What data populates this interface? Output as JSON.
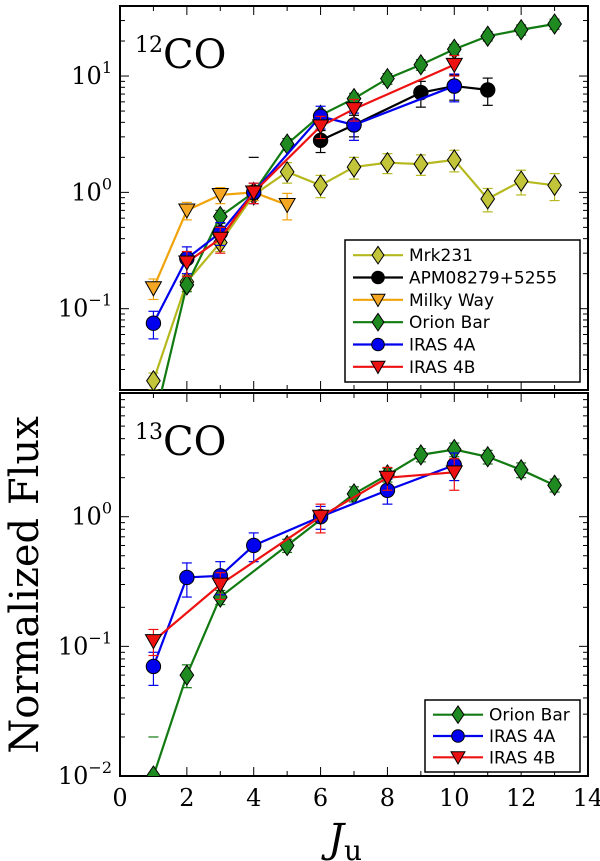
{
  "figure": {
    "ylabel": "Normalized Flux",
    "xlabel_main": "J",
    "xlabel_sub": "u"
  },
  "chart_data": [
    {
      "type": "line",
      "panel_label_sup": "12",
      "panel_label_main": "CO",
      "xlim": [
        0,
        14
      ],
      "ylim": [
        0.02,
        40
      ],
      "yscale": "log",
      "grid": false,
      "legend_position": "bottom-right",
      "x_ticks": [
        0,
        2,
        4,
        6,
        8,
        10,
        12,
        14
      ],
      "y_ticks": [
        {
          "value": 0.1,
          "base": "10",
          "exp": "−1"
        },
        {
          "value": 1,
          "base": "10",
          "exp": "0"
        },
        {
          "value": 10,
          "base": "10",
          "exp": "1"
        }
      ],
      "series": [
        {
          "name": "Mrk231",
          "color": "#b5b91e",
          "face": "#c2c43a",
          "marker": "diamond",
          "points": [
            [
              1,
              0.024
            ],
            [
              2,
              0.17
            ],
            [
              3,
              0.37
            ],
            [
              4,
              0.95
            ],
            [
              5,
              1.5
            ],
            [
              6,
              1.15
            ],
            [
              7,
              1.65
            ],
            [
              8,
              1.8
            ],
            [
              9,
              1.75
            ],
            [
              10,
              1.9
            ],
            [
              11,
              0.88
            ],
            [
              12,
              1.25
            ],
            [
              13,
              1.15
            ]
          ],
          "err": [
            0.004,
            0.025,
            0.06,
            0.1,
            0.3,
            0.25,
            0.35,
            0.35,
            0.35,
            0.4,
            0.2,
            0.3,
            0.3
          ]
        },
        {
          "name": "APM08279+5255",
          "color": "#000000",
          "face": "#000000",
          "marker": "circle",
          "points": [
            [
              6,
              2.8
            ],
            [
              7,
              3.8
            ],
            [
              9,
              7.2
            ],
            [
              10,
              8.2
            ],
            [
              11,
              7.6
            ]
          ],
          "err": [
            0.6,
            0.8,
            1.8,
            2.0,
            2.0
          ]
        },
        {
          "name": "Milky Way",
          "color": "#f0a30a",
          "face": "#f5a623",
          "marker": "triangle-down",
          "points": [
            [
              1,
              0.15
            ],
            [
              2,
              0.7
            ],
            [
              3,
              0.95
            ],
            [
              4,
              1.0
            ],
            [
              5,
              0.78
            ]
          ],
          "err": [
            0.03,
            0.12,
            0.15,
            0.15,
            0.2
          ]
        },
        {
          "name": "Orion Bar",
          "color": "#117a11",
          "face": "#1f8a1f",
          "marker": "diamond",
          "points": [
            [
              1,
              0.01
            ],
            [
              2,
              0.16
            ],
            [
              3,
              0.62
            ],
            [
              4,
              1.0
            ],
            [
              5,
              2.6
            ],
            [
              6,
              4.6
            ],
            [
              7,
              6.4
            ],
            [
              8,
              9.5
            ],
            [
              9,
              12.5
            ],
            [
              10,
              17
            ],
            [
              11,
              22
            ],
            [
              12,
              25
            ],
            [
              13,
              28
            ]
          ],
          "err": [
            0.002,
            0.02,
            0.08,
            0.1,
            0.3,
            0.5,
            0.7,
            1.0,
            1.3,
            1.7,
            2.0,
            2.5,
            2.8
          ]
        },
        {
          "name": "IRAS 4A",
          "color": "#0000ee",
          "face": "#0000ee",
          "marker": "circle",
          "points": [
            [
              1,
              0.075
            ],
            [
              2,
              0.27
            ],
            [
              3,
              0.45
            ],
            [
              4,
              1.0
            ],
            [
              6,
              4.5
            ],
            [
              7,
              3.8
            ],
            [
              10,
              8.2
            ]
          ],
          "err": [
            0.02,
            0.07,
            0.1,
            0.2,
            1.0,
            1.0,
            2.2
          ]
        },
        {
          "name": "IRAS 4B",
          "color": "#ee1111",
          "face": "#ee1111",
          "marker": "triangle-down",
          "points": [
            [
              2,
              0.25
            ],
            [
              3,
              0.4
            ],
            [
              4,
              1.0
            ],
            [
              6,
              3.7
            ],
            [
              7,
              5.2
            ],
            [
              10,
              12.5
            ]
          ],
          "err": [
            0.06,
            0.1,
            0.2,
            0.8,
            1.1,
            2.5
          ]
        }
      ],
      "extra_marks": [
        {
          "x": 4,
          "y": 2.0,
          "color": "#000000"
        }
      ]
    },
    {
      "type": "line",
      "panel_label_sup": "13",
      "panel_label_main": "CO",
      "xlim": [
        0,
        14
      ],
      "ylim": [
        0.01,
        9
      ],
      "yscale": "log",
      "grid": false,
      "legend_position": "bottom-right",
      "x_ticks": [
        0,
        2,
        4,
        6,
        8,
        10,
        12,
        14
      ],
      "y_ticks": [
        {
          "value": 0.01,
          "base": "10",
          "exp": "−2"
        },
        {
          "value": 0.1,
          "base": "10",
          "exp": "−1"
        },
        {
          "value": 1,
          "base": "10",
          "exp": "0"
        }
      ],
      "series": [
        {
          "name": "Orion Bar",
          "color": "#117a11",
          "face": "#1f8a1f",
          "marker": "diamond",
          "points": [
            [
              1,
              0.01
            ],
            [
              2,
              0.06
            ],
            [
              3,
              0.24
            ],
            [
              5,
              0.6
            ],
            [
              7,
              1.5
            ],
            [
              8,
              2.1
            ],
            [
              9,
              3.0
            ],
            [
              10,
              3.3
            ],
            [
              11,
              2.9
            ],
            [
              12,
              2.3
            ],
            [
              13,
              1.75
            ]
          ],
          "err": [
            0.0,
            0.012,
            0.03,
            0.07,
            0.2,
            0.25,
            0.35,
            0.4,
            0.35,
            0.3,
            0.2
          ]
        },
        {
          "name": "IRAS 4A",
          "color": "#0000ee",
          "face": "#0000ee",
          "marker": "circle",
          "points": [
            [
              1,
              0.07
            ],
            [
              2,
              0.34
            ],
            [
              3,
              0.35
            ],
            [
              4,
              0.6
            ],
            [
              6,
              1.0
            ],
            [
              8,
              1.6
            ],
            [
              10,
              2.5
            ]
          ],
          "err": [
            0.02,
            0.1,
            0.1,
            0.15,
            0.2,
            0.35,
            0.6
          ]
        },
        {
          "name": "IRAS 4B",
          "color": "#ee1111",
          "face": "#ee1111",
          "marker": "triangle-down",
          "points": [
            [
              1,
              0.11
            ],
            [
              3,
              0.3
            ],
            [
              6,
              1.0
            ],
            [
              8,
              2.0
            ],
            [
              10,
              2.2
            ]
          ],
          "err": [
            0.025,
            0.07,
            0.25,
            0.4,
            0.6
          ]
        }
      ],
      "extra_marks": [
        {
          "x": 1,
          "y": 0.02,
          "color": "#117a11"
        }
      ]
    }
  ]
}
